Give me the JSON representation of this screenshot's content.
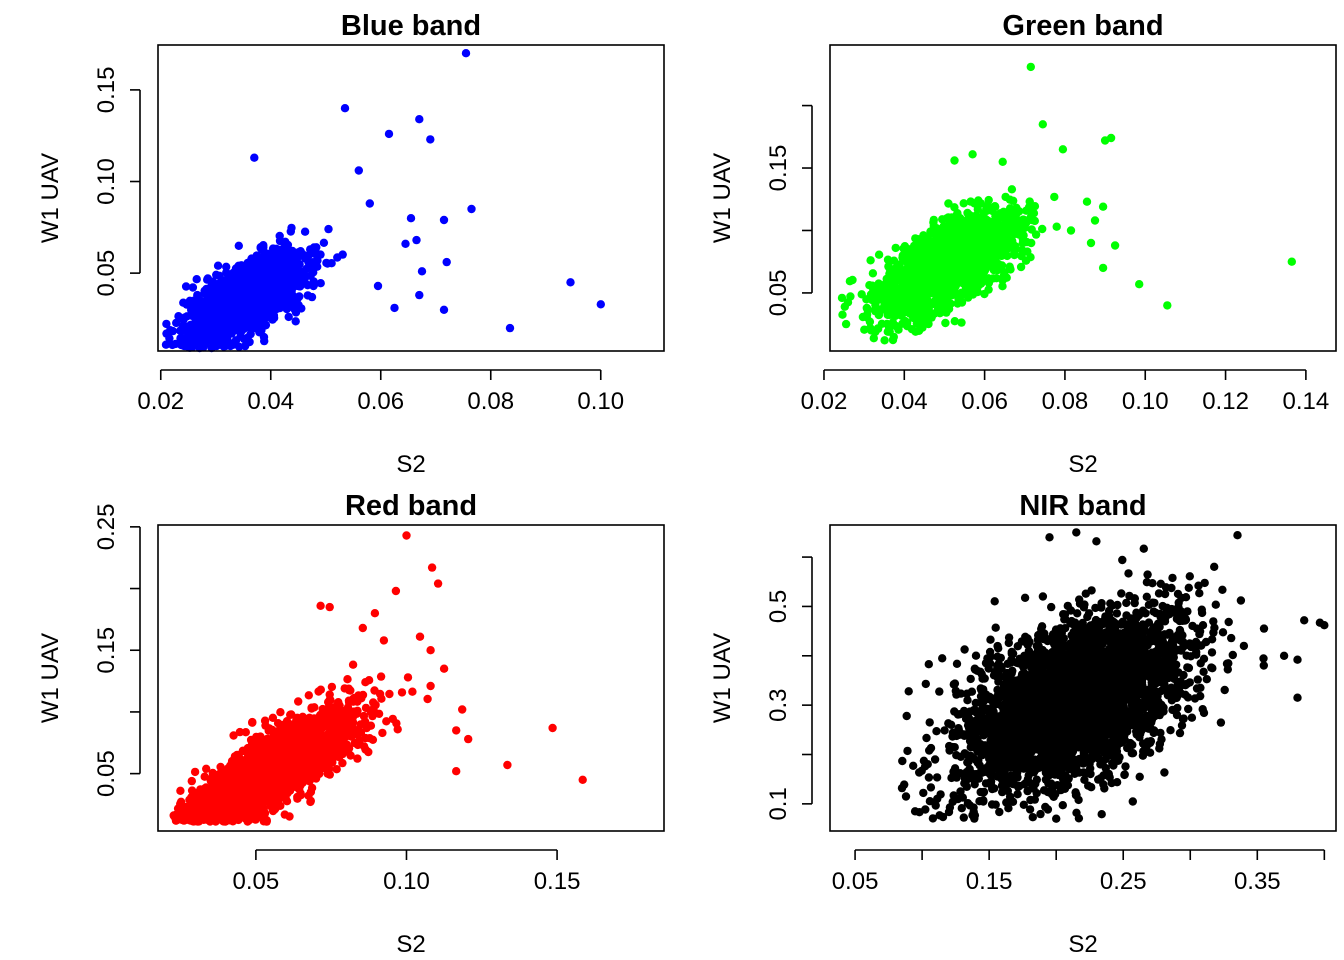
{
  "figure": {
    "panels": [
      {
        "id": "blue",
        "title": "Blue band",
        "xlabel": "S2",
        "ylabel": "W1 UAV",
        "color": "#0000ff",
        "xlim": [
          0.0195,
          0.1115
        ],
        "ylim": [
          0.0075,
          0.1745
        ],
        "xticks": [
          0.02,
          0.04,
          0.06,
          0.08,
          0.1
        ],
        "xtick_labels": [
          "0.02",
          "0.04",
          "0.06",
          "0.08",
          "0.10"
        ],
        "yticks": [
          0.05,
          0.1,
          0.15
        ],
        "ytick_labels": [
          "0.05",
          "0.10",
          "0.15"
        ]
      },
      {
        "id": "green",
        "title": "Green band",
        "xlabel": "S2",
        "ylabel": "W1 UAV",
        "color": "#00ff00",
        "xlim": [
          0.0215,
          0.1475
        ],
        "ylim": [
          0.0035,
          0.2485
        ],
        "xticks": [
          0.02,
          0.04,
          0.06,
          0.08,
          0.1,
          0.12,
          0.14
        ],
        "xtick_labels": [
          "0.02",
          "0.04",
          "0.06",
          "0.08",
          "0.10",
          "0.12",
          "0.14"
        ],
        "yticks": [
          0.05,
          0.1,
          0.15,
          0.2
        ],
        "ytick_labels": [
          "0.05",
          "",
          "0.15",
          ""
        ]
      },
      {
        "id": "red",
        "title": "Red band",
        "xlabel": "S2",
        "ylabel": "W1 UAV",
        "color": "#ff0000",
        "xlim": [
          0.0175,
          0.1855
        ],
        "ylim": [
          0.0035,
          0.2515
        ],
        "xticks": [
          0.05,
          0.1,
          0.15
        ],
        "xtick_labels": [
          "0.05",
          "0.10",
          "0.15"
        ],
        "yticks": [
          0.05,
          0.1,
          0.15,
          0.2,
          0.25
        ],
        "ytick_labels": [
          "0.05",
          "",
          "0.15",
          "",
          "0.25"
        ]
      },
      {
        "id": "nir",
        "title": "NIR band",
        "xlabel": "S2",
        "ylabel": "W1 UAV",
        "color": "#000000",
        "xlim": [
          0.0313,
          0.4087
        ],
        "ylim": [
          0.045,
          0.665
        ],
        "xticks": [
          0.05,
          0.1,
          0.15,
          0.2,
          0.25,
          0.3,
          0.35,
          0.4
        ],
        "xtick_labels": [
          "0.05",
          "",
          "0.15",
          "",
          "0.25",
          "",
          "0.35",
          ""
        ],
        "yticks": [
          0.1,
          0.2,
          0.3,
          0.4,
          0.5,
          0.6
        ],
        "ytick_labels": [
          "0.1",
          "",
          "0.3",
          "",
          "0.5",
          ""
        ]
      }
    ]
  },
  "chart_data": [
    {
      "type": "scatter",
      "title": "Blue band",
      "xlabel": "S2",
      "ylabel": "W1 UAV",
      "xlim": [
        0.0195,
        0.1115
      ],
      "ylim": [
        0.0075,
        0.1745
      ],
      "grid": false,
      "series": [
        {
          "color": "#0000ff",
          "cluster": {
            "n": 1500,
            "x_mean": 0.036,
            "x_sd": 0.0055,
            "y_intercept": -0.0173,
            "y_slope": 1.5,
            "y_sd": 0.0095,
            "x_min": 0.0205,
            "y_min": 0.009
          },
          "points": [
            {
              "x": 0.0755,
              "y": 0.17
            },
            {
              "x": 0.0535,
              "y": 0.14
            },
            {
              "x": 0.067,
              "y": 0.134
            },
            {
              "x": 0.0615,
              "y": 0.126
            },
            {
              "x": 0.069,
              "y": 0.123
            },
            {
              "x": 0.037,
              "y": 0.113
            },
            {
              "x": 0.056,
              "y": 0.106
            },
            {
              "x": 0.058,
              "y": 0.088
            },
            {
              "x": 0.0765,
              "y": 0.085
            },
            {
              "x": 0.0655,
              "y": 0.08
            },
            {
              "x": 0.0715,
              "y": 0.079
            },
            {
              "x": 0.0665,
              "y": 0.068
            },
            {
              "x": 0.0645,
              "y": 0.066
            },
            {
              "x": 0.072,
              "y": 0.056
            },
            {
              "x": 0.0675,
              "y": 0.051
            },
            {
              "x": 0.0945,
              "y": 0.045
            },
            {
              "x": 0.0595,
              "y": 0.043
            },
            {
              "x": 0.067,
              "y": 0.038
            },
            {
              "x": 0.0625,
              "y": 0.031
            },
            {
              "x": 0.0715,
              "y": 0.03
            },
            {
              "x": 0.1,
              "y": 0.033
            },
            {
              "x": 0.0835,
              "y": 0.02
            },
            {
              "x": 0.0485,
              "y": 0.06
            },
            {
              "x": 0.0505,
              "y": 0.074
            }
          ]
        }
      ]
    },
    {
      "type": "scatter",
      "title": "Green band",
      "xlabel": "S2",
      "ylabel": "W1 UAV",
      "xlim": [
        0.0215,
        0.1475
      ],
      "ylim": [
        0.0035,
        0.2485
      ],
      "grid": false,
      "series": [
        {
          "color": "#00ff00",
          "cluster": {
            "n": 1800,
            "x_mean": 0.051,
            "x_sd": 0.0085,
            "y_intercept": -0.0172,
            "y_slope": 1.75,
            "y_sd": 0.0155,
            "x_min": 0.024,
            "y_min": 0.011
          },
          "points": [
            {
              "x": 0.0715,
              "y": 0.231
            },
            {
              "x": 0.0745,
              "y": 0.185
            },
            {
              "x": 0.09,
              "y": 0.172
            },
            {
              "x": 0.0915,
              "y": 0.174
            },
            {
              "x": 0.0795,
              "y": 0.165
            },
            {
              "x": 0.057,
              "y": 0.161
            },
            {
              "x": 0.0525,
              "y": 0.156
            },
            {
              "x": 0.0645,
              "y": 0.155
            },
            {
              "x": 0.0855,
              "y": 0.123
            },
            {
              "x": 0.0895,
              "y": 0.119
            },
            {
              "x": 0.0875,
              "y": 0.108
            },
            {
              "x": 0.0815,
              "y": 0.1
            },
            {
              "x": 0.0865,
              "y": 0.09
            },
            {
              "x": 0.0925,
              "y": 0.088
            },
            {
              "x": 0.1365,
              "y": 0.075
            },
            {
              "x": 0.0895,
              "y": 0.07
            },
            {
              "x": 0.0985,
              "y": 0.057
            },
            {
              "x": 0.1055,
              "y": 0.04
            },
            {
              "x": 0.0245,
              "y": 0.046
            },
            {
              "x": 0.0255,
              "y": 0.025
            }
          ]
        }
      ]
    },
    {
      "type": "scatter",
      "title": "Red band",
      "xlabel": "S2",
      "ylabel": "W1 UAV",
      "xlim": [
        0.0175,
        0.1855
      ],
      "ylim": [
        0.0035,
        0.2515
      ],
      "grid": false,
      "series": [
        {
          "color": "#ff0000",
          "cluster": {
            "n": 2000,
            "x_mean": 0.055,
            "x_sd": 0.014,
            "y_intercept": -0.028,
            "y_slope": 1.45,
            "y_sd": 0.016,
            "x_min": 0.0225,
            "y_min": 0.011
          },
          "points": [
            {
              "x": 0.1,
              "y": 0.243
            },
            {
              "x": 0.1105,
              "y": 0.204
            },
            {
              "x": 0.0965,
              "y": 0.198
            },
            {
              "x": 0.1085,
              "y": 0.217
            },
            {
              "x": 0.0745,
              "y": 0.185
            },
            {
              "x": 0.0895,
              "y": 0.18
            },
            {
              "x": 0.0855,
              "y": 0.168
            },
            {
              "x": 0.1045,
              "y": 0.161
            },
            {
              "x": 0.108,
              "y": 0.15
            },
            {
              "x": 0.0925,
              "y": 0.158
            },
            {
              "x": 0.1125,
              "y": 0.135
            },
            {
              "x": 0.108,
              "y": 0.121
            },
            {
              "x": 0.1005,
              "y": 0.128
            },
            {
              "x": 0.1185,
              "y": 0.102
            },
            {
              "x": 0.1165,
              "y": 0.085
            },
            {
              "x": 0.1205,
              "y": 0.078
            },
            {
              "x": 0.1485,
              "y": 0.087
            },
            {
              "x": 0.1335,
              "y": 0.057
            },
            {
              "x": 0.1165,
              "y": 0.052
            },
            {
              "x": 0.1585,
              "y": 0.045
            },
            {
              "x": 0.0715,
              "y": 0.186
            }
          ]
        }
      ]
    },
    {
      "type": "scatter",
      "title": "NIR band",
      "xlabel": "S2",
      "ylabel": "W1 UAV",
      "xlim": [
        0.0313,
        0.4087
      ],
      "ylim": [
        0.045,
        0.665
      ],
      "grid": false,
      "series": [
        {
          "color": "#000000",
          "cluster": {
            "n": 3500,
            "x_mean": 0.215,
            "x_sd": 0.042,
            "y_intercept": 0.095,
            "y_slope": 1.0,
            "y_sd": 0.075,
            "x_min": 0.085,
            "y_min": 0.07
          },
          "points": [
            {
              "x": 0.215,
              "y": 0.65
            },
            {
              "x": 0.195,
              "y": 0.64
            },
            {
              "x": 0.23,
              "y": 0.632
            },
            {
              "x": 0.385,
              "y": 0.472
            },
            {
              "x": 0.4,
              "y": 0.462
            },
            {
              "x": 0.38,
              "y": 0.392
            },
            {
              "x": 0.37,
              "y": 0.4
            },
            {
              "x": 0.38,
              "y": 0.315
            },
            {
              "x": 0.085,
              "y": 0.132
            },
            {
              "x": 0.088,
              "y": 0.115
            },
            {
              "x": 0.09,
              "y": 0.328
            },
            {
              "x": 0.105,
              "y": 0.383
            },
            {
              "x": 0.115,
              "y": 0.395
            },
            {
              "x": 0.2,
              "y": 0.07
            },
            {
              "x": 0.34,
              "y": 0.42
            },
            {
              "x": 0.355,
              "y": 0.455
            }
          ]
        }
      ]
    }
  ]
}
